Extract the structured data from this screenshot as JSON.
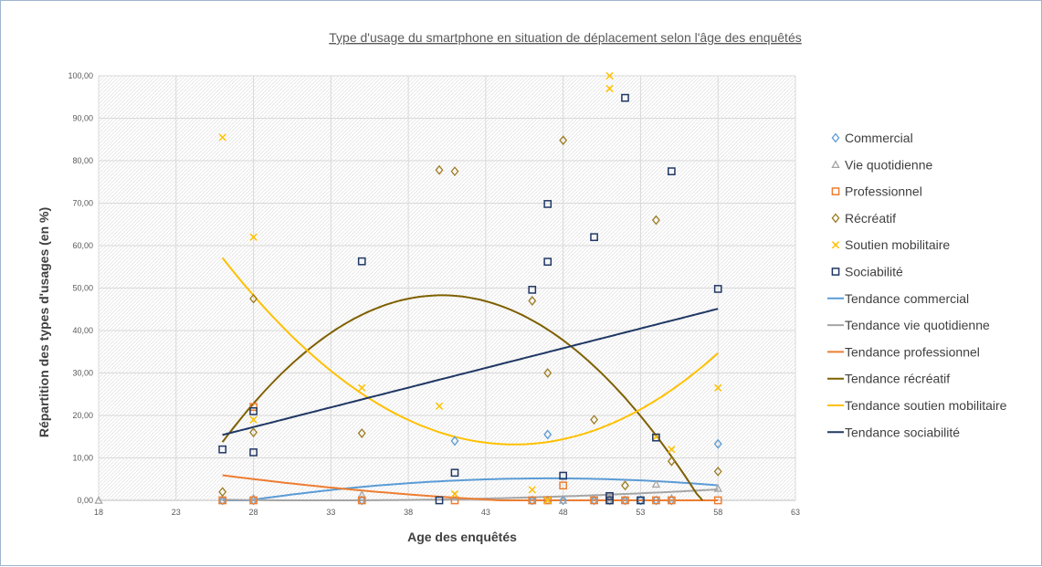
{
  "chart_data": {
    "type": "scatter",
    "title": "Type d'usage du smartphone en situation de déplacement selon l'âge des enquêtés",
    "xlabel": "Age des enquêtés",
    "ylabel": "Répartition des types d'usages (en %)",
    "xlim": [
      18,
      63
    ],
    "ylim": [
      0,
      100
    ],
    "x_ticks": [
      "18",
      "23",
      "28",
      "33",
      "38",
      "43",
      "48",
      "53",
      "58",
      "63"
    ],
    "y_ticks": [
      "0,00",
      "10,00",
      "20,00",
      "30,00",
      "40,00",
      "50,00",
      "60,00",
      "70,00",
      "80,00",
      "90,00",
      "100,00"
    ],
    "grid": true,
    "legend_position": "right",
    "series": [
      {
        "name": "Commercial",
        "marker": "diamond",
        "color": "#5b9bd5",
        "points": [
          [
            26,
            0
          ],
          [
            28,
            0
          ],
          [
            35,
            0
          ],
          [
            41,
            14
          ],
          [
            46,
            0
          ],
          [
            47,
            15.5
          ],
          [
            48,
            0
          ],
          [
            50,
            0
          ],
          [
            51,
            0
          ],
          [
            52,
            0
          ],
          [
            53,
            0
          ],
          [
            54,
            0
          ],
          [
            55,
            0
          ],
          [
            58,
            13.3
          ]
        ]
      },
      {
        "name": "Vie quotidienne",
        "marker": "triangle",
        "color": "#a5a5a5",
        "points": [
          [
            18,
            0
          ],
          [
            26,
            0
          ],
          [
            28,
            0.5
          ],
          [
            35,
            1.3
          ],
          [
            41,
            1
          ],
          [
            46,
            0
          ],
          [
            47,
            0
          ],
          [
            48,
            0
          ],
          [
            50,
            0
          ],
          [
            51,
            0.5
          ],
          [
            52,
            0
          ],
          [
            54,
            3.8
          ],
          [
            55,
            0.5
          ],
          [
            58,
            2.8
          ]
        ]
      },
      {
        "name": "Professionnel",
        "marker": "square",
        "color": "#ed7d31",
        "points": [
          [
            26,
            0
          ],
          [
            28,
            22
          ],
          [
            28,
            0
          ],
          [
            35,
            0
          ],
          [
            41,
            0
          ],
          [
            46,
            0
          ],
          [
            47,
            0
          ],
          [
            48,
            3.5
          ],
          [
            50,
            0
          ],
          [
            51,
            0
          ],
          [
            52,
            0
          ],
          [
            54,
            0
          ],
          [
            55,
            0
          ],
          [
            58,
            0
          ]
        ]
      },
      {
        "name": "Récréatif",
        "marker": "diamond",
        "color": "#9c7a1f",
        "points": [
          [
            26,
            2
          ],
          [
            28,
            47.5
          ],
          [
            28,
            16
          ],
          [
            35,
            15.8
          ],
          [
            40,
            77.8
          ],
          [
            41,
            77.5
          ],
          [
            46,
            47
          ],
          [
            47,
            30
          ],
          [
            48,
            84.8
          ],
          [
            50,
            19
          ],
          [
            52,
            3.5
          ],
          [
            54,
            66
          ],
          [
            55,
            9.2
          ],
          [
            58,
            6.8
          ]
        ]
      },
      {
        "name": "Soutien mobilitaire",
        "marker": "cross",
        "color": "#ffc000",
        "points": [
          [
            26,
            85.5
          ],
          [
            28,
            62
          ],
          [
            28,
            19
          ],
          [
            35,
            26.5
          ],
          [
            40,
            22.2
          ],
          [
            41,
            1.5
          ],
          [
            46,
            2.5
          ],
          [
            47,
            0
          ],
          [
            51,
            100
          ],
          [
            51,
            97
          ],
          [
            54,
            15
          ],
          [
            55,
            12
          ],
          [
            58,
            26.5
          ]
        ]
      },
      {
        "name": "Sociabilité",
        "marker": "square",
        "color": "#203864",
        "points": [
          [
            26,
            12
          ],
          [
            28,
            21
          ],
          [
            28,
            11.3
          ],
          [
            35,
            56.3
          ],
          [
            40,
            0
          ],
          [
            41,
            6.5
          ],
          [
            46,
            49.6
          ],
          [
            47,
            69.8
          ],
          [
            47,
            56.2
          ],
          [
            48,
            5.8
          ],
          [
            50,
            62
          ],
          [
            51,
            1
          ],
          [
            51,
            0
          ],
          [
            52,
            94.8
          ],
          [
            53,
            0
          ],
          [
            54,
            14.8
          ],
          [
            55,
            77.5
          ],
          [
            58,
            49.8
          ]
        ]
      }
    ],
    "trendlines": [
      {
        "name": "Tendance commercial",
        "color": "#5b9bd5",
        "x_range": [
          26,
          58
        ],
        "coef": [
          -25.44,
          1.3,
          -0.0138
        ]
      },
      {
        "name": "Tendance vie quotidienne",
        "color": "#a5a5a5",
        "x_range": [
          26,
          58
        ],
        "coef": [
          4.2,
          -0.26,
          0.004
        ]
      },
      {
        "name": "Tendance professionnel",
        "color": "#ed7d31",
        "x_range": [
          26,
          58
        ],
        "coef": [
          23.39,
          -0.875,
          0.0078
        ]
      },
      {
        "name": "Tendance récréatif",
        "color": "#7f6000",
        "x_range": [
          26,
          57
        ],
        "coef": [
          -229.9,
          13.855,
          -0.1725
        ]
      },
      {
        "name": "Tendance soutien mobilitaire",
        "color": "#ffc000",
        "x_range": [
          26,
          58
        ],
        "coef": [
          262.33,
          -11.117,
          0.124
        ]
      },
      {
        "name": "Tendance sociabilité",
        "color": "#203864",
        "x_range": [
          26,
          58
        ],
        "coef": [
          -8.74,
          0.9286,
          0
        ]
      }
    ]
  }
}
